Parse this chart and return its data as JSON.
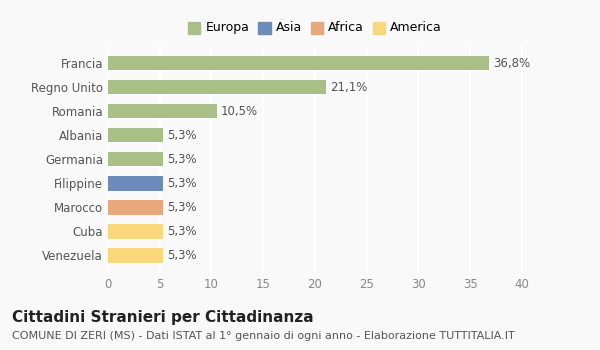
{
  "categories": [
    "Venezuela",
    "Cuba",
    "Marocco",
    "Filippine",
    "Germania",
    "Albania",
    "Romania",
    "Regno Unito",
    "Francia"
  ],
  "values": [
    5.3,
    5.3,
    5.3,
    5.3,
    5.3,
    5.3,
    10.5,
    21.1,
    36.8
  ],
  "labels": [
    "5,3%",
    "5,3%",
    "5,3%",
    "5,3%",
    "5,3%",
    "5,3%",
    "10,5%",
    "21,1%",
    "36,8%"
  ],
  "colors": [
    "#f8d87a",
    "#f8d87a",
    "#e8a87c",
    "#6b8cba",
    "#a8bf8a",
    "#a8bf8a",
    "#a8bf8a",
    "#a8bf8a",
    "#a8bf8a"
  ],
  "legend_labels": [
    "Europa",
    "Asia",
    "Africa",
    "America"
  ],
  "legend_colors": [
    "#a8bf8a",
    "#6b8cba",
    "#e8a87c",
    "#f8d87a"
  ],
  "xlim": [
    0,
    40
  ],
  "xticks": [
    0,
    5,
    10,
    15,
    20,
    25,
    30,
    35,
    40
  ],
  "title": "Cittadini Stranieri per Cittadinanza",
  "subtitle": "COMUNE DI ZERI (MS) - Dati ISTAT al 1° gennaio di ogni anno - Elaborazione TUTTITALIA.IT",
  "background_color": "#f9f9f9",
  "grid_color": "#ffffff",
  "bar_height": 0.6,
  "title_fontsize": 11,
  "subtitle_fontsize": 8,
  "label_fontsize": 8.5,
  "tick_fontsize": 8.5,
  "legend_fontsize": 9
}
